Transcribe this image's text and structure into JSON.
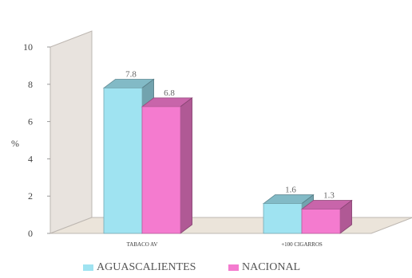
{
  "chart_data": {
    "type": "bar",
    "title": "",
    "xlabel": "",
    "ylabel": "%",
    "ylim": [
      0,
      10
    ],
    "yticks": [
      0,
      2,
      4,
      6,
      8,
      10
    ],
    "categories": [
      "TABACO AV",
      "+100 CIGARROS"
    ],
    "series": [
      {
        "name": "AGUASCALIENTES",
        "values": [
          7.8,
          1.6
        ],
        "color": "#9fe3f1"
      },
      {
        "name": "NACIONAL",
        "values": [
          6.8,
          1.3
        ],
        "color": "#f47bcf"
      }
    ],
    "data_labels": [
      [
        "7.8",
        "6.8"
      ],
      [
        "1.6",
        "1.3"
      ]
    ],
    "style": "3d-bars",
    "grid": false,
    "legend_position": "bottom"
  }
}
